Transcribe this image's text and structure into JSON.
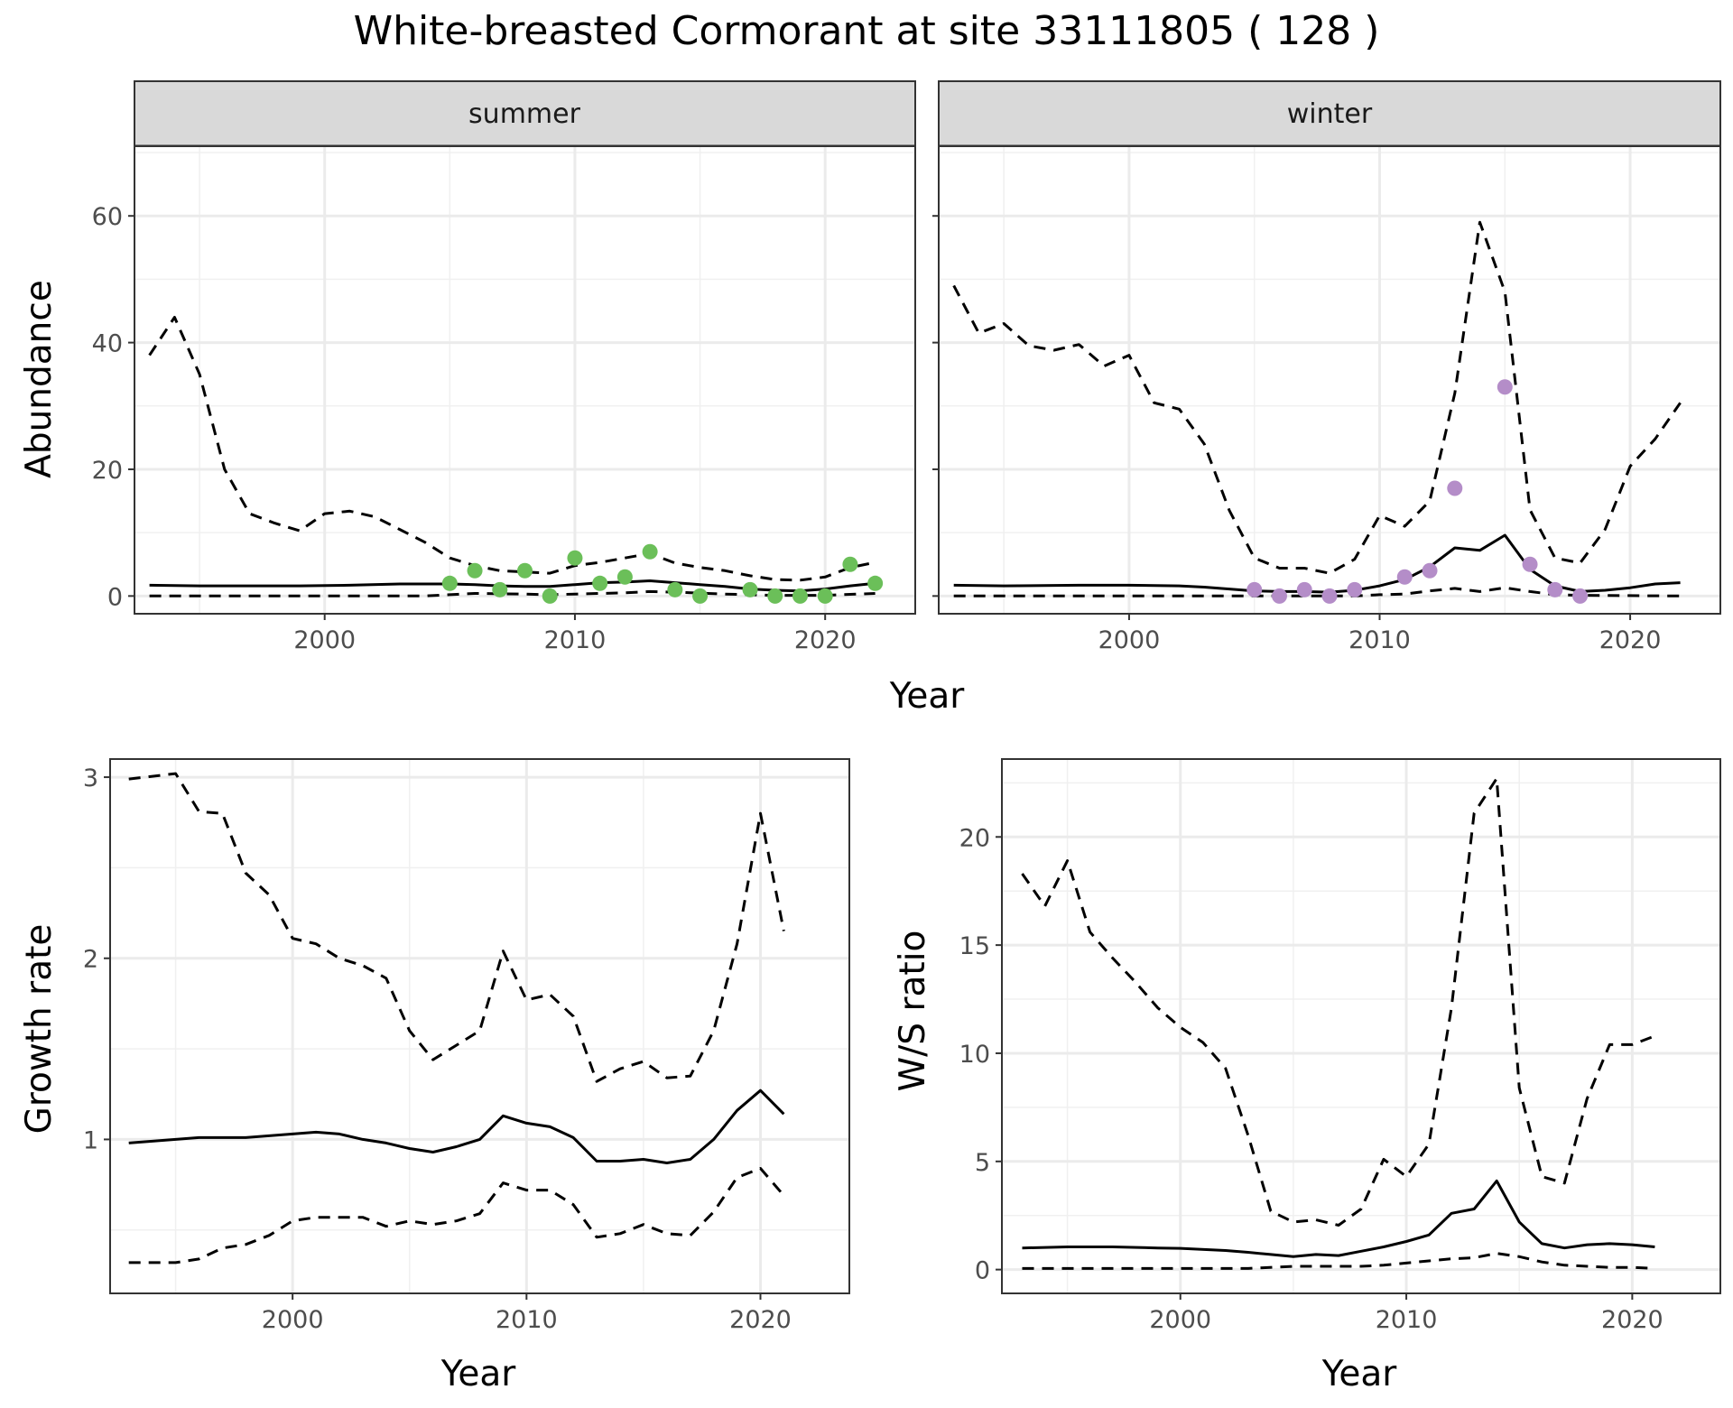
{
  "title": "White-breasted Cormorant at site 33111805 ( 128 )",
  "panels": {
    "abundance": {
      "ylabel": "Abundance",
      "xlabel": "Year",
      "yticks": [
        "0",
        "20",
        "40",
        "60"
      ],
      "xticks": [
        "2000",
        "2010",
        "2020"
      ],
      "facets": [
        "summer",
        "winter"
      ]
    },
    "growth": {
      "ylabel": "Growth rate",
      "xlabel": "Year",
      "yticks": [
        "1",
        "2",
        "3"
      ],
      "xticks": [
        "2000",
        "2010",
        "2020"
      ]
    },
    "ratio": {
      "ylabel": "W/S ratio",
      "xlabel": "Year",
      "yticks": [
        "0",
        "5",
        "10",
        "15",
        "20"
      ],
      "xticks": [
        "2000",
        "2010",
        "2020"
      ]
    }
  },
  "chart_data": [
    {
      "type": "line",
      "facet": "summer",
      "xlabel": "Year",
      "ylabel": "Abundance",
      "xlim": [
        1992.4,
        2023.6
      ],
      "ylim": [
        -2.8,
        71
      ],
      "xticks": [
        2000,
        2010,
        2020
      ],
      "yticks": [
        0,
        20,
        40,
        60
      ],
      "grid": true,
      "point_color": "#6BBF59",
      "series": [
        {
          "role": "mean",
          "style": "solid",
          "x": [
            1993,
            1995,
            1997,
            1999,
            2001,
            2003,
            2004,
            2005,
            2006,
            2007,
            2008,
            2009,
            2010,
            2011,
            2012,
            2013,
            2014,
            2015,
            2016,
            2017,
            2018,
            2019,
            2020,
            2021,
            2022
          ],
          "values": [
            1.7,
            1.6,
            1.6,
            1.6,
            1.7,
            1.9,
            1.9,
            1.9,
            1.8,
            1.6,
            1.5,
            1.5,
            1.8,
            2.1,
            2.2,
            2.4,
            2.1,
            1.8,
            1.5,
            1.1,
            0.9,
            0.8,
            1.1,
            1.6,
            2.0
          ]
        },
        {
          "role": "upper",
          "style": "dashed",
          "x": [
            1993,
            1994,
            1995,
            1996,
            1997,
            1998,
            1999,
            2000,
            2001,
            2002,
            2003,
            2004,
            2005,
            2006,
            2007,
            2008,
            2009,
            2010,
            2011,
            2012,
            2013,
            2014,
            2015,
            2016,
            2017,
            2018,
            2019,
            2020,
            2021,
            2022
          ],
          "values": [
            38,
            44,
            35,
            20,
            13,
            11.5,
            10.3,
            13,
            13.4,
            12.5,
            10.5,
            8.5,
            6,
            4.8,
            4,
            3.8,
            3.6,
            4.8,
            5.3,
            6,
            6.7,
            5.2,
            4.5,
            4,
            3.2,
            2.6,
            2.5,
            3,
            4.5,
            5.3
          ]
        },
        {
          "role": "lower",
          "style": "dashed",
          "x": [
            1993,
            2000,
            2004,
            2005,
            2006,
            2008,
            2009,
            2010,
            2012,
            2013,
            2014,
            2016,
            2018,
            2020,
            2022
          ],
          "values": [
            0,
            0,
            0,
            0.2,
            0.4,
            0.3,
            0.2,
            0.3,
            0.5,
            0.7,
            0.6,
            0.3,
            0.1,
            0.1,
            0.4
          ]
        }
      ],
      "points": {
        "x": [
          2005,
          2006,
          2007,
          2008,
          2009,
          2010,
          2011,
          2012,
          2013,
          2014,
          2015,
          2017,
          2018,
          2019,
          2020,
          2021,
          2022
        ],
        "y": [
          2,
          4,
          1,
          4,
          0,
          6,
          2,
          3,
          7,
          1,
          0,
          1,
          0,
          0,
          0,
          5,
          2
        ]
      }
    },
    {
      "type": "line",
      "facet": "winter",
      "xlabel": "Year",
      "ylabel": "Abundance",
      "xlim": [
        1992.4,
        2023.6
      ],
      "ylim": [
        -2.8,
        71
      ],
      "xticks": [
        2000,
        2010,
        2020
      ],
      "yticks": [
        0,
        20,
        40,
        60
      ],
      "grid": true,
      "point_color": "#B48DC8",
      "series": [
        {
          "role": "mean",
          "style": "solid",
          "x": [
            1993,
            1995,
            1998,
            2000,
            2002,
            2003,
            2004,
            2005,
            2006,
            2007,
            2008,
            2009,
            2010,
            2011,
            2012,
            2013,
            2014,
            2015,
            2016,
            2017,
            2018,
            2019,
            2020,
            2021,
            2022
          ],
          "values": [
            1.7,
            1.6,
            1.7,
            1.7,
            1.6,
            1.4,
            1.1,
            0.8,
            0.7,
            0.7,
            0.6,
            0.9,
            1.6,
            2.6,
            4.6,
            7.6,
            7.2,
            9.6,
            4.2,
            1.6,
            0.7,
            0.9,
            1.3,
            1.9,
            2.1
          ]
        },
        {
          "role": "upper",
          "style": "dashed",
          "x": [
            1993,
            1994,
            1995,
            1996,
            1997,
            1998,
            1999,
            2000,
            2001,
            2002,
            2003,
            2004,
            2005,
            2006,
            2007,
            2008,
            2009,
            2010,
            2011,
            2012,
            2013,
            2014,
            2015,
            2016,
            2017,
            2018,
            2019,
            2020,
            2021,
            2022
          ],
          "values": [
            49,
            41.5,
            43,
            39.5,
            38.8,
            39.7,
            36.3,
            38,
            30.5,
            29.5,
            24,
            13.5,
            6,
            4.4,
            4.4,
            3.6,
            5.8,
            12.7,
            11,
            15,
            32,
            59,
            48,
            13.6,
            6,
            5.2,
            10.5,
            20.5,
            24.8,
            30.5
          ]
        },
        {
          "role": "lower",
          "style": "dashed",
          "x": [
            1993,
            2000,
            2005,
            2008,
            2009,
            2010,
            2011,
            2012,
            2013,
            2014,
            2015,
            2016,
            2017,
            2018,
            2022
          ],
          "values": [
            0,
            0,
            0,
            0,
            0,
            0.2,
            0.3,
            0.8,
            1.2,
            0.7,
            1.3,
            0.7,
            0.2,
            0.1,
            0
          ]
        }
      ],
      "points": {
        "x": [
          2005,
          2006,
          2007,
          2008,
          2009,
          2011,
          2012,
          2013,
          2015,
          2016,
          2017,
          2018
        ],
        "y": [
          1,
          0,
          1,
          0,
          1,
          3,
          4,
          17,
          33,
          5,
          1,
          0
        ]
      }
    },
    {
      "type": "line",
      "xlabel": "Year",
      "ylabel": "Growth rate",
      "xlim": [
        1992.2,
        2023.8
      ],
      "ylim": [
        0.15,
        3.1
      ],
      "xticks": [
        2000,
        2010,
        2020
      ],
      "yticks": [
        1,
        2,
        3
      ],
      "grid": true,
      "series": [
        {
          "role": "mean",
          "style": "solid",
          "x": [
            1993,
            1994,
            1995,
            1996,
            1997,
            1998,
            1999,
            2000,
            2001,
            2002,
            2003,
            2004,
            2005,
            2006,
            2007,
            2008,
            2009,
            2010,
            2011,
            2012,
            2013,
            2014,
            2015,
            2016,
            2017,
            2018,
            2019,
            2020,
            2021
          ],
          "values": [
            0.98,
            0.99,
            1.0,
            1.01,
            1.01,
            1.01,
            1.02,
            1.03,
            1.04,
            1.03,
            1.0,
            0.98,
            0.95,
            0.93,
            0.96,
            1.0,
            1.13,
            1.09,
            1.07,
            1.01,
            0.88,
            0.88,
            0.89,
            0.87,
            0.89,
            1.0,
            1.16,
            1.27,
            1.14
          ]
        },
        {
          "role": "upper",
          "style": "dashed",
          "x": [
            1993,
            1995,
            1996,
            1997,
            1998,
            1999,
            2000,
            2001,
            2002,
            2003,
            2004,
            2005,
            2006,
            2007,
            2008,
            2009,
            2010,
            2011,
            2012,
            2013,
            2014,
            2015,
            2016,
            2017,
            2018,
            2019,
            2020,
            2021
          ],
          "values": [
            2.99,
            3.02,
            2.81,
            2.8,
            2.47,
            2.35,
            2.11,
            2.08,
            2.0,
            1.96,
            1.89,
            1.6,
            1.44,
            1.52,
            1.6,
            2.04,
            1.77,
            1.8,
            1.68,
            1.32,
            1.39,
            1.43,
            1.34,
            1.35,
            1.6,
            2.08,
            2.8,
            2.15
          ]
        },
        {
          "role": "lower",
          "style": "dashed",
          "x": [
            1993,
            1995,
            1996,
            1997,
            1998,
            1999,
            2000,
            2001,
            2002,
            2003,
            2004,
            2005,
            2006,
            2007,
            2008,
            2009,
            2010,
            2011,
            2012,
            2013,
            2014,
            2015,
            2016,
            2017,
            2018,
            2019,
            2020,
            2021
          ],
          "values": [
            0.32,
            0.32,
            0.34,
            0.4,
            0.42,
            0.47,
            0.55,
            0.57,
            0.57,
            0.57,
            0.52,
            0.55,
            0.53,
            0.55,
            0.59,
            0.76,
            0.72,
            0.72,
            0.64,
            0.46,
            0.48,
            0.53,
            0.48,
            0.47,
            0.6,
            0.79,
            0.84,
            0.69
          ]
        }
      ]
    },
    {
      "type": "line",
      "xlabel": "Year",
      "ylabel": "W/S ratio",
      "xlim": [
        1992.1,
        2023.9
      ],
      "ylim": [
        -1.1,
        23.6
      ],
      "xticks": [
        2000,
        2010,
        2020
      ],
      "yticks": [
        0,
        5,
        10,
        15,
        20
      ],
      "grid": true,
      "series": [
        {
          "role": "mean",
          "style": "solid",
          "x": [
            1993,
            1995,
            1997,
            1999,
            2000,
            2002,
            2003,
            2004,
            2005,
            2006,
            2007,
            2008,
            2009,
            2010,
            2011,
            2012,
            2013,
            2014,
            2015,
            2016,
            2017,
            2018,
            2019,
            2020,
            2021
          ],
          "values": [
            1.0,
            1.05,
            1.05,
            1.0,
            0.98,
            0.88,
            0.8,
            0.7,
            0.6,
            0.7,
            0.65,
            0.85,
            1.05,
            1.3,
            1.6,
            2.6,
            2.8,
            4.1,
            2.2,
            1.2,
            1.0,
            1.15,
            1.2,
            1.15,
            1.05
          ]
        },
        {
          "role": "upper",
          "style": "dashed",
          "x": [
            1993,
            1994,
            1995,
            1996,
            1997,
            1998,
            1999,
            2000,
            2001,
            2002,
            2003,
            2004,
            2005,
            2006,
            2007,
            2008,
            2009,
            2010,
            2011,
            2012,
            2013,
            2014,
            2015,
            2016,
            2017,
            2018,
            2019,
            2020,
            2021
          ],
          "values": [
            18.3,
            16.8,
            18.9,
            15.6,
            14.4,
            13.3,
            12.1,
            11.2,
            10.5,
            9.3,
            6.2,
            2.7,
            2.2,
            2.3,
            2.05,
            2.8,
            5.1,
            4.3,
            5.8,
            12.1,
            21.1,
            22.7,
            8.4,
            4.3,
            4.0,
            7.9,
            10.4,
            10.4,
            10.8
          ]
        },
        {
          "role": "lower",
          "style": "dashed",
          "x": [
            1993,
            2000,
            2003,
            2005,
            2008,
            2009,
            2011,
            2012,
            2013,
            2014,
            2015,
            2016,
            2017,
            2018,
            2019,
            2020,
            2021
          ],
          "values": [
            0.05,
            0.05,
            0.05,
            0.15,
            0.15,
            0.2,
            0.4,
            0.5,
            0.55,
            0.75,
            0.6,
            0.35,
            0.2,
            0.15,
            0.1,
            0.1,
            0.05
          ]
        }
      ]
    }
  ]
}
